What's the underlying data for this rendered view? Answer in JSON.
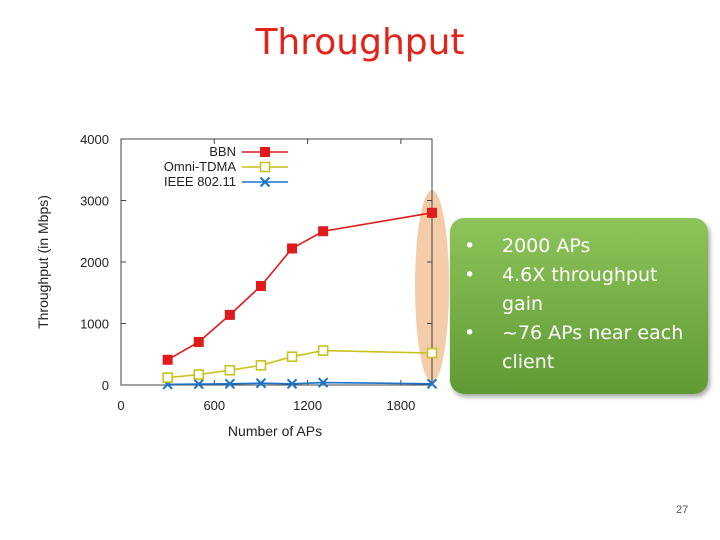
{
  "slide": {
    "title": "Throughput",
    "page_number": "27",
    "callout_bullets": [
      "2000 APs",
      "4.6X throughput gain",
      "~76 APs near each client"
    ],
    "bullet_glyph": "•",
    "callout_color": "#78b043",
    "highlight_color": "#f4c6a0"
  },
  "chart_data": {
    "type": "line",
    "title": "",
    "xlabel": "Number of APs",
    "ylabel": "Throughput (in Mbps)",
    "xlim": [
      0,
      2000
    ],
    "ylim": [
      0,
      4000
    ],
    "xticks": [
      0,
      600,
      1200,
      1800
    ],
    "yticks": [
      0,
      1000,
      2000,
      3000,
      4000
    ],
    "grid": false,
    "legend": "top-left",
    "x": [
      300,
      500,
      700,
      900,
      1100,
      1300,
      2000
    ],
    "series": [
      {
        "name": "BBN",
        "color": "#e01a1a",
        "marker": "filled-square",
        "values": [
          410,
          700,
          1140,
          1610,
          2220,
          2500,
          2800
        ]
      },
      {
        "name": "Omni-TDMA",
        "color": "#c9c21a",
        "marker": "open-square",
        "values": [
          120,
          170,
          240,
          320,
          460,
          560,
          520
        ]
      },
      {
        "name": "IEEE 802.11",
        "color": "#1a73c9",
        "marker": "cross",
        "values": [
          10,
          15,
          20,
          30,
          20,
          40,
          20
        ]
      }
    ]
  }
}
